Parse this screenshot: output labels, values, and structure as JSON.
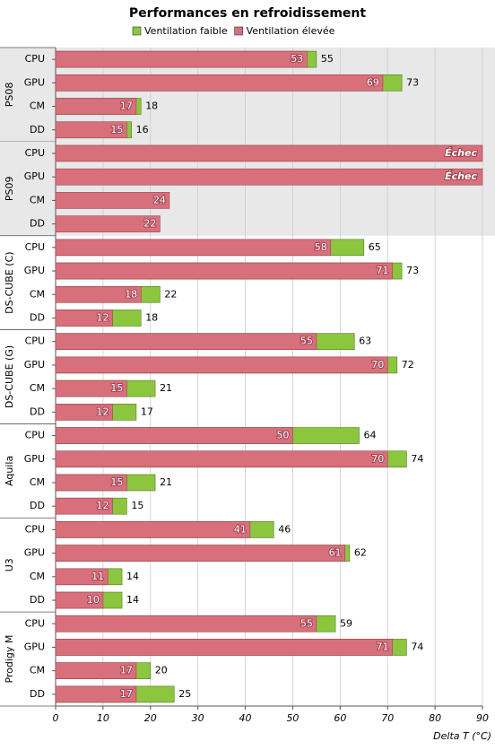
{
  "chart_data": {
    "type": "bar",
    "orientation": "horizontal",
    "title": "Performances en refroidissement",
    "x_label": "Delta T (°C)",
    "groups": [
      "PS08",
      "PS09",
      "DS-CUBE (C)",
      "DS-CUBE (G)",
      "Aquila",
      "U3",
      "Prodigy M"
    ],
    "shaded_groups": [
      0,
      1
    ],
    "categories": [
      "CPU",
      "GPU",
      "CM",
      "DD",
      "CPU",
      "GPU",
      "CM",
      "DD",
      "CPU",
      "GPU",
      "CM",
      "DD",
      "CPU",
      "GPU",
      "CM",
      "DD",
      "CPU",
      "GPU",
      "CM",
      "DD",
      "CPU",
      "GPU",
      "CM",
      "DD",
      "CPU",
      "GPU",
      "CM",
      "DD"
    ],
    "series": [
      {
        "name": "Ventilation faible",
        "color": "#8cc63f",
        "values": [
          55,
          73,
          18,
          16,
          null,
          null,
          null,
          null,
          65,
          73,
          22,
          18,
          63,
          72,
          21,
          17,
          64,
          74,
          21,
          15,
          46,
          62,
          14,
          14,
          59,
          74,
          20,
          25
        ]
      },
      {
        "name": "Ventilation élevée",
        "color": "#d8707c",
        "values": [
          53,
          69,
          17,
          15,
          null,
          null,
          24,
          22,
          58,
          71,
          18,
          12,
          55,
          70,
          15,
          12,
          50,
          70,
          15,
          12,
          41,
          61,
          11,
          10,
          55,
          71,
          17,
          17
        ],
        "value_labels": [
          null,
          null,
          null,
          null,
          "Échec",
          "Échec",
          null,
          null,
          null,
          null,
          null,
          null,
          null,
          null,
          null,
          null,
          null,
          null,
          null,
          null,
          null,
          null,
          null,
          null,
          null,
          null,
          null,
          null
        ]
      }
    ],
    "xlim": [
      0,
      90
    ],
    "xticks": [
      0,
      10,
      20,
      30,
      40,
      50,
      60,
      70,
      80,
      90
    ],
    "grid": true
  }
}
